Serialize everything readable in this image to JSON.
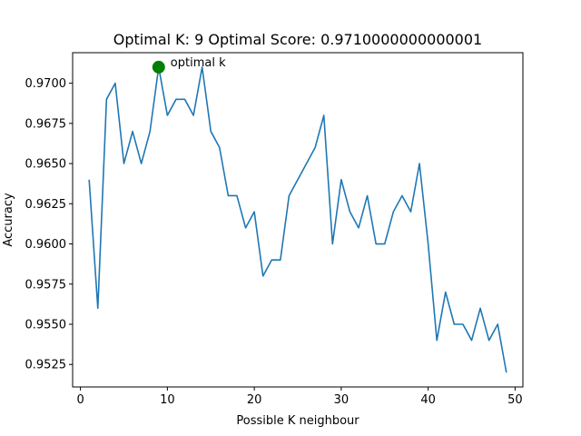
{
  "chart_data": {
    "type": "line",
    "title": "Optimal K: 9 Optimal Score: 0.9710000000000001",
    "xlabel": "Possible K neighbour",
    "ylabel": "Accuracy",
    "xlim": [
      -0.9,
      50.9
    ],
    "ylim": [
      0.9511,
      0.9719
    ],
    "xticks": [
      0,
      10,
      20,
      30,
      40,
      50
    ],
    "xtick_labels": [
      "0",
      "10",
      "20",
      "30",
      "40",
      "50"
    ],
    "yticks": [
      0.9525,
      0.955,
      0.9575,
      0.96,
      0.9625,
      0.965,
      0.9675,
      0.97
    ],
    "ytick_labels": [
      "0.9525",
      "0.9550",
      "0.9575",
      "0.9600",
      "0.9625",
      "0.9650",
      "0.9675",
      "0.9700"
    ],
    "grid": false,
    "series": [
      {
        "color": "#1f77b4",
        "x": [
          1,
          2,
          3,
          4,
          5,
          6,
          7,
          8,
          9,
          10,
          11,
          12,
          13,
          14,
          15,
          16,
          17,
          18,
          19,
          20,
          21,
          22,
          23,
          24,
          25,
          26,
          27,
          28,
          29,
          30,
          31,
          32,
          33,
          34,
          35,
          36,
          37,
          38,
          39,
          40,
          41,
          42,
          43,
          44,
          45,
          46,
          47,
          48,
          49
        ],
        "y": [
          0.964,
          0.956,
          0.969,
          0.97,
          0.965,
          0.967,
          0.965,
          0.967,
          0.971,
          0.968,
          0.969,
          0.969,
          0.968,
          0.971,
          0.967,
          0.966,
          0.963,
          0.963,
          0.961,
          0.962,
          0.958,
          0.959,
          0.959,
          0.963,
          0.964,
          0.965,
          0.966,
          0.968,
          0.96,
          0.964,
          0.962,
          0.961,
          0.963,
          0.96,
          0.96,
          0.962,
          0.963,
          0.962,
          0.965,
          0.96,
          0.954,
          0.957,
          0.955,
          0.955,
          0.954,
          0.956,
          0.954,
          0.955,
          0.952
        ]
      }
    ],
    "highlight_point": {
      "x": 9,
      "y": 0.971,
      "color": "#008000"
    },
    "annotation": {
      "text": "optimal k",
      "x": 9,
      "y": 0.971
    }
  }
}
